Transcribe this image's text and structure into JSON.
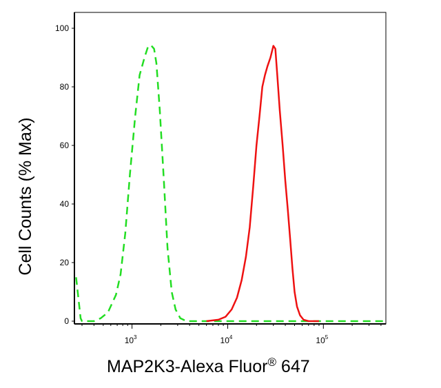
{
  "chart_data": {
    "type": "line",
    "xlabel": "MAP2K3-Alexa Fluor",
    "xlabel_mark": "®",
    "xlabel_suffix": " 647",
    "ylabel": "Cell Counts (% Max)",
    "x_scale": "log",
    "xlim": [
      250,
      450000
    ],
    "ylim": [
      0,
      100
    ],
    "x_ticks": [
      {
        "value": 1000,
        "base": "10",
        "exp": "3"
      },
      {
        "value": 10000,
        "base": "10",
        "exp": "4"
      },
      {
        "value": 100000,
        "base": "10",
        "exp": "5"
      }
    ],
    "y_ticks": [
      0,
      20,
      40,
      60,
      80,
      100
    ],
    "grid": false,
    "series": [
      {
        "color": "#22dd22",
        "style": "dashed",
        "points": [
          [
            260,
            15
          ],
          [
            275,
            8
          ],
          [
            290,
            1
          ],
          [
            300,
            0
          ],
          [
            330,
            0
          ],
          [
            400,
            0
          ],
          [
            470,
            1
          ],
          [
            560,
            3
          ],
          [
            680,
            9
          ],
          [
            760,
            16
          ],
          [
            850,
            30
          ],
          [
            950,
            50
          ],
          [
            1080,
            70
          ],
          [
            1200,
            84
          ],
          [
            1350,
            90
          ],
          [
            1480,
            94
          ],
          [
            1600,
            94
          ],
          [
            1700,
            93
          ],
          [
            1800,
            88
          ],
          [
            1950,
            72
          ],
          [
            2150,
            48
          ],
          [
            2350,
            25
          ],
          [
            2600,
            10
          ],
          [
            2850,
            4
          ],
          [
            3200,
            1
          ],
          [
            3700,
            0
          ],
          [
            5000,
            0
          ],
          [
            10000,
            0
          ],
          [
            40000,
            0
          ],
          [
            100000,
            0
          ],
          [
            450000,
            0
          ]
        ]
      },
      {
        "color": "#ee1111",
        "style": "solid",
        "points": [
          [
            6000,
            0
          ],
          [
            8000,
            0.5
          ],
          [
            9500,
            1.5
          ],
          [
            11000,
            4
          ],
          [
            12500,
            8
          ],
          [
            14000,
            14
          ],
          [
            15500,
            22
          ],
          [
            17000,
            32
          ],
          [
            18500,
            46
          ],
          [
            20000,
            60
          ],
          [
            21500,
            70
          ],
          [
            23000,
            80
          ],
          [
            24500,
            84
          ],
          [
            26000,
            87
          ],
          [
            28000,
            90
          ],
          [
            30000,
            94
          ],
          [
            31500,
            93
          ],
          [
            33000,
            84
          ],
          [
            35000,
            72
          ],
          [
            37500,
            60
          ],
          [
            40000,
            48
          ],
          [
            42500,
            38
          ],
          [
            45000,
            28
          ],
          [
            47500,
            18
          ],
          [
            50000,
            10
          ],
          [
            53000,
            5
          ],
          [
            57000,
            2
          ],
          [
            62000,
            0.5
          ],
          [
            70000,
            0
          ],
          [
            90000,
            0
          ]
        ]
      }
    ]
  }
}
